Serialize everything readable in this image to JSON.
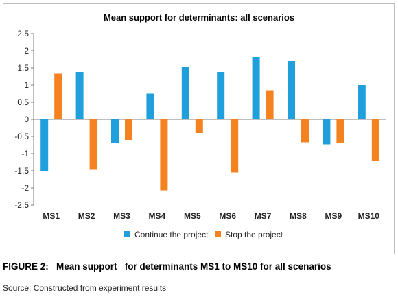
{
  "colors": {
    "continue": "#1f9fdc",
    "stop": "#f58220",
    "axis": "#7f7f7f"
  },
  "chart_data": {
    "type": "bar",
    "title": "Mean support for determinants:  all scenarios",
    "categories": [
      "MS1",
      "MS2",
      "MS3",
      "MS4",
      "MS5",
      "MS6",
      "MS7",
      "MS8",
      "MS9",
      "MS10"
    ],
    "series": [
      {
        "name": "Continue the project",
        "values": [
          -1.52,
          1.38,
          -0.7,
          0.75,
          1.53,
          1.38,
          1.82,
          1.7,
          -0.73,
          1.0
        ]
      },
      {
        "name": "Stop the project",
        "values": [
          1.33,
          -1.47,
          -0.6,
          -2.07,
          -0.4,
          -1.55,
          0.85,
          -0.67,
          -0.7,
          -1.22
        ]
      }
    ],
    "ylim": [
      -2.5,
      2.5
    ],
    "yticks": [
      "2.5",
      "2",
      "1.5",
      "1",
      "0.5",
      "0",
      "-0.5",
      "-1",
      "-1.5",
      "-2",
      "-2.5"
    ],
    "grid": false,
    "legend": "bottom"
  },
  "caption": "FIGURE 2:   Mean support   for determinants MS1 to MS10 for all scenarios",
  "source": "Source: Constructed from experiment results"
}
